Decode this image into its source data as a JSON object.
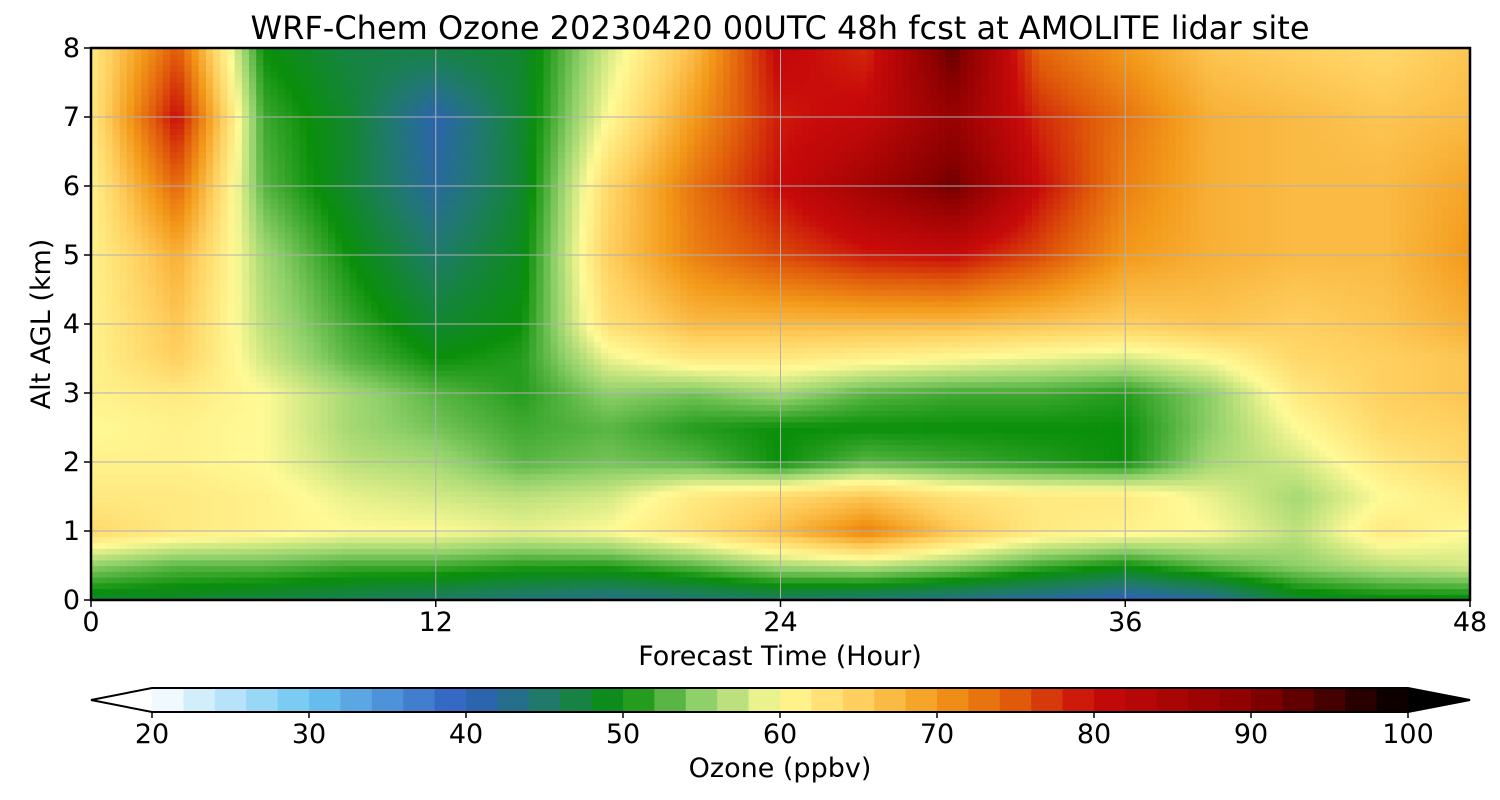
{
  "chart_data": {
    "type": "heatmap",
    "title": "WRF-Chem Ozone  20230420 00UTC 48h fcst at AMOLITE lidar site",
    "xlabel": "Forecast Time (Hour)",
    "ylabel": "Alt AGL (km)",
    "xlim": [
      0,
      48
    ],
    "ylim": [
      0,
      8
    ],
    "x_ticks": [
      0,
      12,
      24,
      36,
      48
    ],
    "y_ticks": [
      0,
      1,
      2,
      3,
      4,
      5,
      6,
      7,
      8
    ],
    "grid": true,
    "x": [
      0,
      3,
      6,
      9,
      12,
      15,
      18,
      21,
      24,
      27,
      30,
      33,
      36,
      39,
      42,
      45,
      48
    ],
    "y": [
      0,
      0.5,
      1,
      1.5,
      2,
      2.5,
      3,
      3.5,
      4,
      5,
      6,
      7,
      8
    ],
    "values": [
      [
        48,
        48,
        47,
        46,
        45,
        44,
        43,
        44,
        45,
        44,
        43,
        42,
        40,
        42,
        48,
        49,
        49
      ],
      [
        55,
        53,
        53,
        52,
        52,
        51,
        51,
        53,
        56,
        57,
        55,
        52,
        50,
        53,
        55,
        57,
        58
      ],
      [
        64,
        62,
        61,
        60,
        60,
        59,
        60,
        63,
        67,
        72,
        66,
        62,
        61,
        60,
        57,
        62,
        60
      ],
      [
        62,
        62,
        61,
        59,
        58,
        57,
        58,
        62,
        64,
        66,
        63,
        62,
        62,
        59,
        56,
        60,
        62
      ],
      [
        61,
        61,
        60,
        57,
        56,
        53,
        54,
        53,
        50,
        53,
        52,
        51,
        50,
        56,
        58,
        62,
        64
      ],
      [
        60,
        61,
        60,
        56,
        54,
        52,
        53,
        51,
        50,
        50,
        50,
        50,
        50,
        55,
        60,
        64,
        65
      ],
      [
        61,
        62,
        60,
        56,
        53,
        51,
        55,
        54,
        56,
        53,
        52,
        52,
        51,
        55,
        62,
        65,
        66
      ],
      [
        61,
        65,
        58,
        53,
        50,
        51,
        59,
        62,
        62,
        61,
        60,
        59,
        58,
        60,
        64,
        65,
        66
      ],
      [
        61,
        66,
        57,
        52,
        48,
        50,
        63,
        67,
        67,
        67,
        67,
        66,
        65,
        66,
        65,
        66,
        68
      ],
      [
        61,
        68,
        56,
        50,
        45,
        49,
        65,
        72,
        76,
        79,
        80,
        76,
        70,
        68,
        67,
        67,
        70
      ],
      [
        61,
        74,
        53,
        48,
        42,
        48,
        64,
        73,
        80,
        86,
        92,
        80,
        72,
        68,
        67,
        67,
        69
      ],
      [
        62,
        80,
        52,
        48,
        41,
        48,
        60,
        70,
        79,
        81,
        88,
        78,
        73,
        68,
        67,
        66,
        67
      ],
      [
        62,
        75,
        50,
        47,
        47,
        48,
        58,
        67,
        81,
        78,
        93,
        74,
        70,
        66,
        65,
        64,
        66
      ]
    ],
    "colorbar": {
      "label": "Ozone  (ppbv)",
      "min": 20,
      "max": 100,
      "ticks": [
        20,
        30,
        40,
        50,
        60,
        70,
        80,
        90,
        100
      ],
      "extend": "both",
      "colormap": [
        [
          20,
          "#ffffff"
        ],
        [
          30,
          "#6cc6f2"
        ],
        [
          40,
          "#2f5fbf"
        ],
        [
          45,
          "#1f7a6a"
        ],
        [
          50,
          "#0a8f0a"
        ],
        [
          55,
          "#8fd06a"
        ],
        [
          60,
          "#fffa96"
        ],
        [
          65,
          "#ffd060"
        ],
        [
          70,
          "#f39a1a"
        ],
        [
          75,
          "#e05a0a"
        ],
        [
          80,
          "#c80a0a"
        ],
        [
          90,
          "#8a0000"
        ],
        [
          100,
          "#000000"
        ]
      ]
    }
  }
}
